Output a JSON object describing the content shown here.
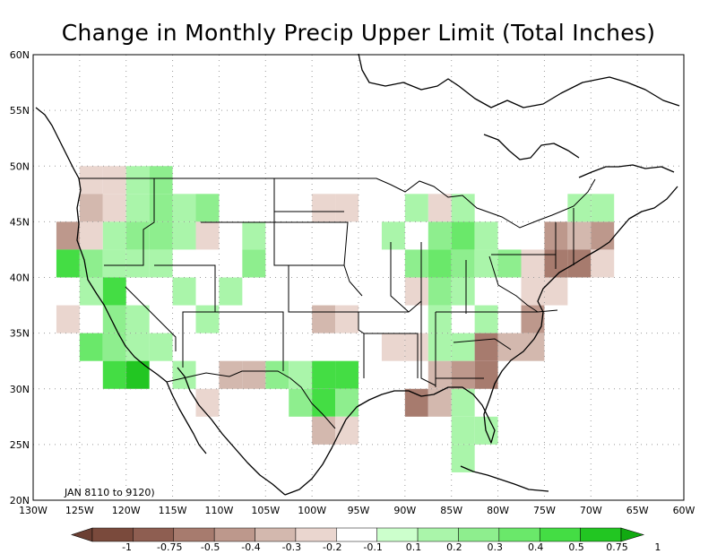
{
  "title": "Change in Monthly Precip Upper Limit (Total Inches)",
  "period_label": "JAN 8110 to 9120)",
  "lon_ticks": [
    "130W",
    "125W",
    "120W",
    "115W",
    "110W",
    "105W",
    "100W",
    "95W",
    "90W",
    "85W",
    "80W",
    "75W",
    "70W",
    "65W",
    "60W"
  ],
  "lat_ticks": [
    "20N",
    "25N",
    "30N",
    "35N",
    "40N",
    "45N",
    "50N",
    "55N",
    "60N"
  ],
  "legend": {
    "labels": [
      "-1",
      "-0.75",
      "-0.5",
      "-0.4",
      "-0.3",
      "-0.2",
      "-0.1",
      "0.1",
      "0.2",
      "0.3",
      "0.4",
      "0.5",
      "0.75",
      "1"
    ],
    "colors": [
      "#7a4a3c",
      "#8e5e51",
      "#a77b6e",
      "#bd988c",
      "#d3b8ae",
      "#ead6cf",
      "#ffffff",
      "#ccffcc",
      "#aaf5aa",
      "#8eee8e",
      "#6ae86a",
      "#44dd44",
      "#22c622"
    ],
    "low_arrow_color": "#6b3f33",
    "high_arrow_color": "#11aa11"
  },
  "chart_data": {
    "type": "heatmap",
    "extent": {
      "lon": [
        -130,
        -60
      ],
      "lat": [
        20,
        60
      ]
    },
    "cell_size_deg": 2.5,
    "cells": [
      {
        "lon": -123.75,
        "lat": 48.75,
        "v": -0.2
      },
      {
        "lon": -121.25,
        "lat": 48.75,
        "v": -0.2
      },
      {
        "lon": -118.75,
        "lat": 48.75,
        "v": 0.2
      },
      {
        "lon": -116.25,
        "lat": 48.75,
        "v": 0.3
      },
      {
        "lon": -123.75,
        "lat": 46.25,
        "v": -0.3
      },
      {
        "lon": -121.25,
        "lat": 46.25,
        "v": -0.2
      },
      {
        "lon": -118.75,
        "lat": 46.25,
        "v": 0.2
      },
      {
        "lon": -116.25,
        "lat": 46.25,
        "v": 0.3
      },
      {
        "lon": -113.75,
        "lat": 46.25,
        "v": 0.2
      },
      {
        "lon": -111.25,
        "lat": 46.25,
        "v": 0.3
      },
      {
        "lon": -126.25,
        "lat": 43.75,
        "v": -0.4
      },
      {
        "lon": -123.75,
        "lat": 43.75,
        "v": -0.2
      },
      {
        "lon": -121.25,
        "lat": 43.75,
        "v": 0.2
      },
      {
        "lon": -118.75,
        "lat": 43.75,
        "v": 0.3
      },
      {
        "lon": -116.25,
        "lat": 43.75,
        "v": 0.3
      },
      {
        "lon": -113.75,
        "lat": 43.75,
        "v": 0.2
      },
      {
        "lon": -111.25,
        "lat": 43.75,
        "v": -0.2
      },
      {
        "lon": -106.25,
        "lat": 43.75,
        "v": 0.2
      },
      {
        "lon": -126.25,
        "lat": 41.25,
        "v": 0.5
      },
      {
        "lon": -123.75,
        "lat": 41.25,
        "v": 0.3
      },
      {
        "lon": -121.25,
        "lat": 41.25,
        "v": 0.2
      },
      {
        "lon": -118.75,
        "lat": 41.25,
        "v": 0.2
      },
      {
        "lon": -116.25,
        "lat": 41.25,
        "v": 0.2
      },
      {
        "lon": -106.25,
        "lat": 41.25,
        "v": 0.3
      },
      {
        "lon": -123.75,
        "lat": 38.75,
        "v": 0.2
      },
      {
        "lon": -121.25,
        "lat": 38.75,
        "v": 0.5
      },
      {
        "lon": -113.75,
        "lat": 38.75,
        "v": 0.2
      },
      {
        "lon": -108.75,
        "lat": 38.75,
        "v": 0.2
      },
      {
        "lon": -126.25,
        "lat": 36.25,
        "v": -0.2
      },
      {
        "lon": -121.25,
        "lat": 36.25,
        "v": 0.3
      },
      {
        "lon": -118.75,
        "lat": 36.25,
        "v": 0.2
      },
      {
        "lon": -111.25,
        "lat": 36.25,
        "v": 0.2
      },
      {
        "lon": -123.75,
        "lat": 33.75,
        "v": 0.4
      },
      {
        "lon": -121.25,
        "lat": 33.75,
        "v": 0.3
      },
      {
        "lon": -118.75,
        "lat": 33.75,
        "v": 0.2
      },
      {
        "lon": -116.25,
        "lat": 33.75,
        "v": 0.2
      },
      {
        "lon": -121.25,
        "lat": 31.25,
        "v": 0.5
      },
      {
        "lon": -118.75,
        "lat": 31.25,
        "v": 0.75
      },
      {
        "lon": -113.75,
        "lat": 31.25,
        "v": 0.2
      },
      {
        "lon": -108.75,
        "lat": 31.25,
        "v": -0.3
      },
      {
        "lon": -106.25,
        "lat": 31.25,
        "v": -0.3
      },
      {
        "lon": -111.25,
        "lat": 28.75,
        "v": -0.2
      },
      {
        "lon": -98.75,
        "lat": 46.25,
        "v": -0.2
      },
      {
        "lon": -96.25,
        "lat": 46.25,
        "v": -0.2
      },
      {
        "lon": -98.75,
        "lat": 36.25,
        "v": -0.3
      },
      {
        "lon": -96.25,
        "lat": 36.25,
        "v": -0.2
      },
      {
        "lon": -103.75,
        "lat": 31.25,
        "v": 0.3
      },
      {
        "lon": -101.25,
        "lat": 31.25,
        "v": 0.2
      },
      {
        "lon": -98.75,
        "lat": 31.25,
        "v": 0.5
      },
      {
        "lon": -96.25,
        "lat": 31.25,
        "v": 0.5
      },
      {
        "lon": -101.25,
        "lat": 28.75,
        "v": 0.3
      },
      {
        "lon": -98.75,
        "lat": 28.75,
        "v": 0.5
      },
      {
        "lon": -96.25,
        "lat": 28.75,
        "v": 0.3
      },
      {
        "lon": -98.75,
        "lat": 26.25,
        "v": -0.3
      },
      {
        "lon": -96.25,
        "lat": 26.25,
        "v": -0.2
      },
      {
        "lon": -86.25,
        "lat": 46.25,
        "v": -0.2
      },
      {
        "lon": -88.75,
        "lat": 46.25,
        "v": 0.2
      },
      {
        "lon": -83.75,
        "lat": 46.25,
        "v": 0.2
      },
      {
        "lon": -91.25,
        "lat": 43.75,
        "v": 0.2
      },
      {
        "lon": -86.25,
        "lat": 43.75,
        "v": 0.3
      },
      {
        "lon": -83.75,
        "lat": 43.75,
        "v": 0.4
      },
      {
        "lon": -81.25,
        "lat": 43.75,
        "v": 0.2
      },
      {
        "lon": -88.75,
        "lat": 41.25,
        "v": 0.3
      },
      {
        "lon": -86.25,
        "lat": 41.25,
        "v": 0.4
      },
      {
        "lon": -83.75,
        "lat": 41.25,
        "v": 0.3
      },
      {
        "lon": -81.25,
        "lat": 41.25,
        "v": 0.2
      },
      {
        "lon": -78.75,
        "lat": 41.25,
        "v": 0.3
      },
      {
        "lon": -86.25,
        "lat": 38.75,
        "v": 0.3
      },
      {
        "lon": -83.75,
        "lat": 38.75,
        "v": 0.2
      },
      {
        "lon": -88.75,
        "lat": 38.75,
        "v": -0.2
      },
      {
        "lon": -76.25,
        "lat": 38.75,
        "v": -0.2
      },
      {
        "lon": -86.25,
        "lat": 36.25,
        "v": 0.2
      },
      {
        "lon": -81.25,
        "lat": 36.25,
        "v": 0.2
      },
      {
        "lon": -76.25,
        "lat": 36.25,
        "v": -0.4
      },
      {
        "lon": -91.25,
        "lat": 33.75,
        "v": -0.2
      },
      {
        "lon": -88.75,
        "lat": 33.75,
        "v": -0.2
      },
      {
        "lon": -86.25,
        "lat": 33.75,
        "v": 0.2
      },
      {
        "lon": -83.75,
        "lat": 33.75,
        "v": 0.2
      },
      {
        "lon": -81.25,
        "lat": 33.75,
        "v": -0.5
      },
      {
        "lon": -78.75,
        "lat": 33.75,
        "v": -0.3
      },
      {
        "lon": -76.25,
        "lat": 33.75,
        "v": -0.3
      },
      {
        "lon": -86.25,
        "lat": 31.25,
        "v": -0.3
      },
      {
        "lon": -83.75,
        "lat": 31.25,
        "v": -0.4
      },
      {
        "lon": -81.25,
        "lat": 31.25,
        "v": -0.5
      },
      {
        "lon": -88.75,
        "lat": 28.75,
        "v": -0.5
      },
      {
        "lon": -86.25,
        "lat": 28.75,
        "v": -0.3
      },
      {
        "lon": -83.75,
        "lat": 28.75,
        "v": 0.2
      },
      {
        "lon": -81.25,
        "lat": 26.25,
        "v": 0.2
      },
      {
        "lon": -83.75,
        "lat": 26.25,
        "v": 0.2
      },
      {
        "lon": -83.75,
        "lat": 23.75,
        "v": 0.2
      },
      {
        "lon": -73.75,
        "lat": 43.75,
        "v": -0.4
      },
      {
        "lon": -71.25,
        "lat": 43.75,
        "v": -0.3
      },
      {
        "lon": -68.75,
        "lat": 43.75,
        "v": -0.4
      },
      {
        "lon": -73.75,
        "lat": 41.25,
        "v": -0.5
      },
      {
        "lon": -71.25,
        "lat": 41.25,
        "v": -0.5
      },
      {
        "lon": -68.75,
        "lat": 41.25,
        "v": -0.2
      },
      {
        "lon": -76.25,
        "lat": 41.25,
        "v": -0.2
      },
      {
        "lon": -73.75,
        "lat": 38.75,
        "v": -0.2
      },
      {
        "lon": -68.75,
        "lat": 46.25,
        "v": 0.2
      },
      {
        "lon": -71.25,
        "lat": 46.25,
        "v": 0.2
      }
    ]
  }
}
